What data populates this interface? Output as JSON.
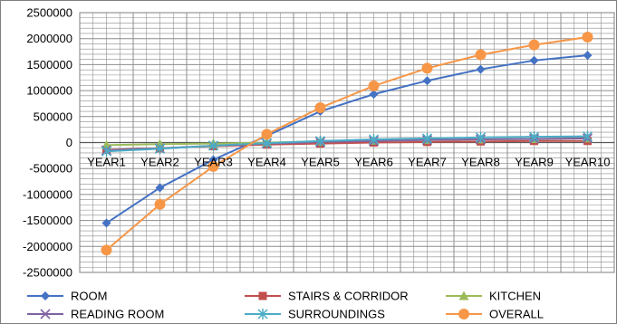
{
  "chart_data": {
    "type": "line",
    "title": "",
    "xlabel": "",
    "ylabel": "",
    "categories": [
      "YEAR1",
      "YEAR2",
      "YEAR3",
      "YEAR4",
      "YEAR5",
      "YEAR6",
      "YEAR7",
      "YEAR8",
      "YEAR9",
      "YEAR10"
    ],
    "ylim": [
      -2500000,
      2500000
    ],
    "ytick_step": 500000,
    "ytick_labels": [
      "2500000",
      "2000000",
      "1500000",
      "1000000",
      "500000",
      "0",
      "-500000",
      "-1000000",
      "-1500000",
      "-2000000",
      "-2500000"
    ],
    "grid": true,
    "legend_placement": "bottom",
    "series": [
      {
        "name": "ROOM",
        "color": "#4472C4",
        "marker": "diamond",
        "values": [
          -1550000,
          -870000,
          -330000,
          130000,
          600000,
          930000,
          1190000,
          1410000,
          1580000,
          1680000
        ]
      },
      {
        "name": "STAIRS & CORRIDOR",
        "color": "#C0504D",
        "marker": "square",
        "values": [
          -140000,
          -110000,
          -70000,
          -40000,
          -20000,
          0,
          10000,
          20000,
          30000,
          30000
        ]
      },
      {
        "name": "KITCHEN",
        "color": "#9BBB59",
        "marker": "triangle",
        "values": [
          -50000,
          -30000,
          -20000,
          0,
          20000,
          40000,
          50000,
          60000,
          70000,
          80000
        ]
      },
      {
        "name": "READING ROOM",
        "color": "#8064A2",
        "marker": "x",
        "values": [
          -150000,
          -110000,
          -60000,
          -20000,
          10000,
          30000,
          50000,
          60000,
          70000,
          80000
        ]
      },
      {
        "name": "SURROUNDINGS",
        "color": "#4BACC6",
        "marker": "star",
        "values": [
          -170000,
          -120000,
          -60000,
          -10000,
          30000,
          60000,
          80000,
          100000,
          110000,
          120000
        ]
      },
      {
        "name": "OVERALL",
        "color": "#F79646",
        "marker": "circle",
        "values": [
          -2070000,
          -1190000,
          -460000,
          160000,
          670000,
          1090000,
          1430000,
          1690000,
          1880000,
          2030000
        ]
      }
    ]
  }
}
